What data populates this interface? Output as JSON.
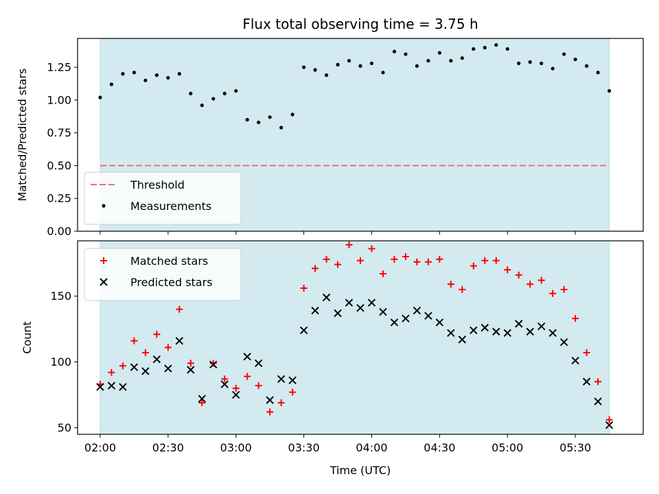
{
  "figure": {
    "title": "Flux total observing time = 3.75 h",
    "xlabel": "Time (UTC)"
  },
  "chart_data": [
    {
      "type": "scatter",
      "ylabel": "Matched/Predicted stars",
      "ylim": [
        0,
        1.47
      ],
      "yticks": [
        "0.00",
        "0.25",
        "0.50",
        "0.75",
        "1.00",
        "1.25"
      ],
      "ytick_values": [
        0,
        0.25,
        0.5,
        0.75,
        1.0,
        1.25
      ],
      "xlim": [
        "01:50",
        "06:00"
      ],
      "xticks": [
        "02:00",
        "02:30",
        "03:00",
        "03:30",
        "04:00",
        "04:30",
        "05:00",
        "05:30"
      ],
      "shaded_span": [
        "02:00",
        "05:45"
      ],
      "shade_color": "#d3eaf0",
      "threshold": {
        "name": "Threshold",
        "value": 0.5,
        "color": "#f07070"
      },
      "series": [
        {
          "name": "Measurements",
          "color": "#000000",
          "marker": "dot",
          "x": [
            "02:00",
            "02:05",
            "02:10",
            "02:15",
            "02:20",
            "02:25",
            "02:30",
            "02:35",
            "02:40",
            "02:45",
            "02:50",
            "02:55",
            "03:00",
            "03:05",
            "03:10",
            "03:15",
            "03:20",
            "03:25",
            "03:30",
            "03:35",
            "03:40",
            "03:45",
            "03:50",
            "03:55",
            "04:00",
            "04:05",
            "04:10",
            "04:15",
            "04:20",
            "04:25",
            "04:30",
            "04:35",
            "04:40",
            "04:45",
            "04:50",
            "04:55",
            "05:00",
            "05:05",
            "05:10",
            "05:15",
            "05:20",
            "05:25",
            "05:30",
            "05:35",
            "05:40",
            "05:45"
          ],
          "y": [
            1.02,
            1.12,
            1.2,
            1.21,
            1.15,
            1.19,
            1.17,
            1.2,
            1.05,
            0.96,
            1.01,
            1.05,
            1.07,
            0.85,
            0.83,
            0.87,
            0.79,
            0.89,
            1.25,
            1.23,
            1.19,
            1.27,
            1.3,
            1.26,
            1.28,
            1.21,
            1.37,
            1.35,
            1.26,
            1.3,
            1.36,
            1.3,
            1.32,
            1.39,
            1.4,
            1.42,
            1.39,
            1.28,
            1.29,
            1.28,
            1.24,
            1.35,
            1.31,
            1.26,
            1.21,
            1.07
          ]
        }
      ],
      "legend_position": "lower-left"
    },
    {
      "type": "scatter",
      "ylabel": "Count",
      "ylim": [
        45,
        192
      ],
      "yticks": [
        "50",
        "100",
        "150"
      ],
      "ytick_values": [
        50,
        100,
        150
      ],
      "xlim": [
        "01:50",
        "06:00"
      ],
      "xticks": [
        "02:00",
        "02:30",
        "03:00",
        "03:30",
        "04:00",
        "04:30",
        "05:00",
        "05:30"
      ],
      "shaded_span": [
        "02:00",
        "05:45"
      ],
      "shade_color": "#d3eaf0",
      "series": [
        {
          "name": "Matched stars",
          "color": "#ff0000",
          "marker": "plus",
          "x": [
            "02:00",
            "02:05",
            "02:10",
            "02:15",
            "02:20",
            "02:25",
            "02:30",
            "02:35",
            "02:40",
            "02:45",
            "02:50",
            "02:55",
            "03:00",
            "03:05",
            "03:10",
            "03:15",
            "03:20",
            "03:25",
            "03:30",
            "03:35",
            "03:40",
            "03:45",
            "03:50",
            "03:55",
            "04:00",
            "04:05",
            "04:10",
            "04:15",
            "04:20",
            "04:25",
            "04:30",
            "04:35",
            "04:40",
            "04:45",
            "04:50",
            "04:55",
            "05:00",
            "05:05",
            "05:10",
            "05:15",
            "05:20",
            "05:25",
            "05:30",
            "05:35",
            "05:40",
            "05:45"
          ],
          "y": [
            83,
            92,
            97,
            116,
            107,
            121,
            111,
            140,
            99,
            69,
            99,
            87,
            80,
            89,
            82,
            62,
            69,
            77,
            156,
            171,
            178,
            174,
            189,
            177,
            186,
            167,
            178,
            180,
            176,
            176,
            178,
            159,
            155,
            173,
            177,
            177,
            170,
            166,
            159,
            162,
            152,
            155,
            133,
            107,
            85,
            56
          ]
        },
        {
          "name": "Predicted stars",
          "color": "#000000",
          "marker": "x",
          "x": [
            "02:00",
            "02:05",
            "02:10",
            "02:15",
            "02:20",
            "02:25",
            "02:30",
            "02:35",
            "02:40",
            "02:45",
            "02:50",
            "02:55",
            "03:00",
            "03:05",
            "03:10",
            "03:15",
            "03:20",
            "03:25",
            "03:30",
            "03:35",
            "03:40",
            "03:45",
            "03:50",
            "03:55",
            "04:00",
            "04:05",
            "04:10",
            "04:15",
            "04:20",
            "04:25",
            "04:30",
            "04:35",
            "04:40",
            "04:45",
            "04:50",
            "04:55",
            "05:00",
            "05:05",
            "05:10",
            "05:15",
            "05:20",
            "05:25",
            "05:30",
            "05:35",
            "05:40",
            "05:45"
          ],
          "y": [
            81,
            82,
            81,
            96,
            93,
            102,
            95,
            116,
            94,
            72,
            98,
            83,
            75,
            104,
            99,
            71,
            87,
            86,
            124,
            139,
            149,
            137,
            145,
            141,
            145,
            138,
            130,
            133,
            139,
            135,
            130,
            122,
            117,
            124,
            126,
            123,
            122,
            129,
            123,
            127,
            122,
            115,
            101,
            85,
            70,
            52
          ]
        }
      ],
      "legend_position": "upper-left"
    }
  ]
}
